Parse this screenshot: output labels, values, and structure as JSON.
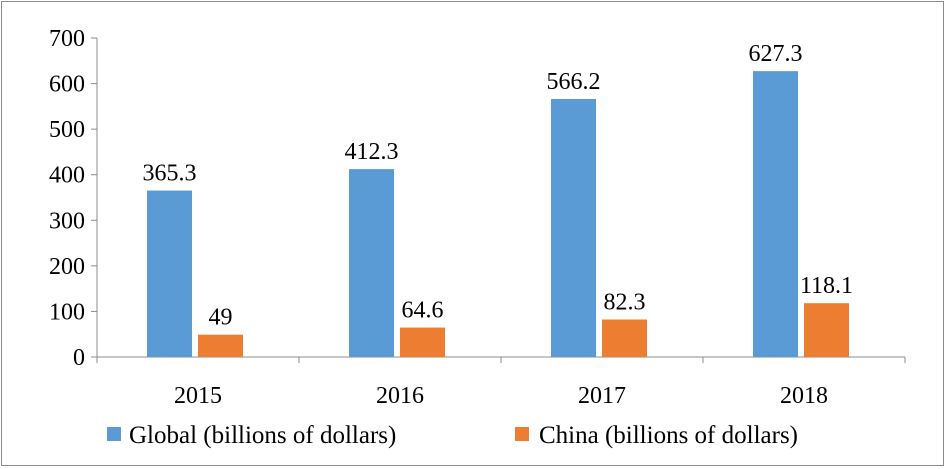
{
  "chart_data": {
    "type": "bar",
    "title": "",
    "xlabel": "",
    "ylabel": "",
    "categories": [
      "2015",
      "2016",
      "2017",
      "2018"
    ],
    "series": [
      {
        "name": "Global (billions of dollars)",
        "values": [
          365.3,
          412.3,
          566.2,
          627.3
        ],
        "color": "#5b9bd5"
      },
      {
        "name": "China (billions of dollars)",
        "values": [
          49,
          64.6,
          82.3,
          118.1
        ],
        "color": "#ed7d31"
      }
    ],
    "value_labels": [
      [
        "365.3",
        "412.3",
        "566.2",
        "627.3"
      ],
      [
        "49",
        "64.6",
        "82.3",
        "118.1"
      ]
    ],
    "ylim": [
      0,
      700
    ],
    "yticks": [
      "0",
      "100",
      "200",
      "300",
      "400",
      "500",
      "600",
      "700"
    ],
    "grid": false,
    "legend_position": "bottom"
  }
}
